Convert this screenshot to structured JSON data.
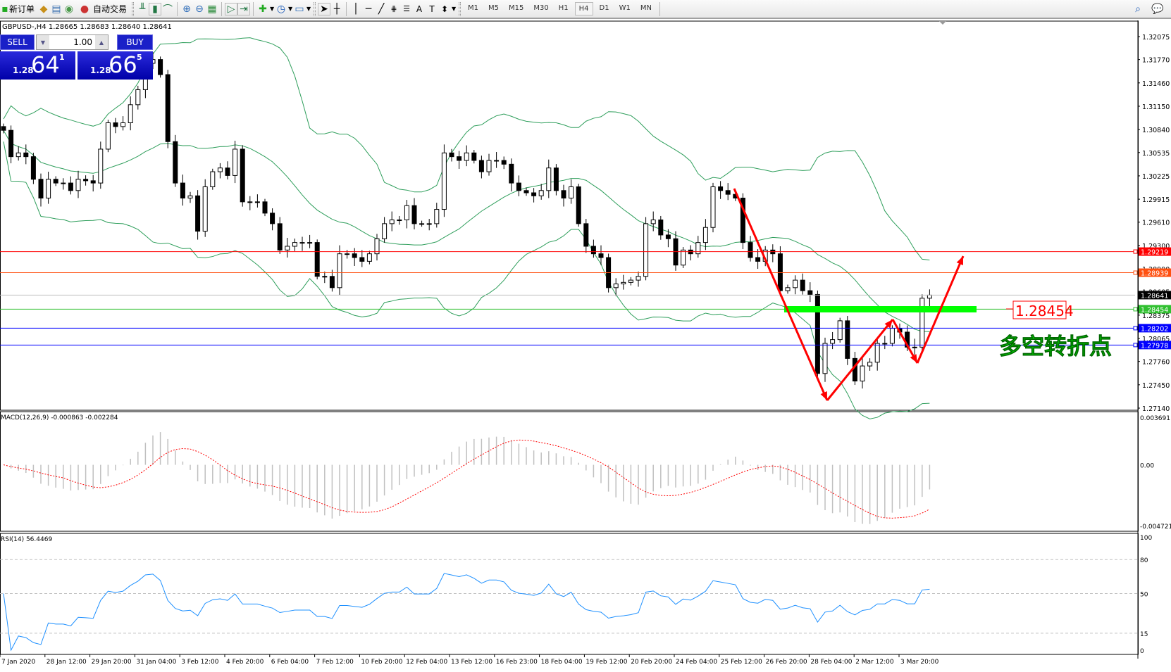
{
  "toolbar": {
    "new_order": "新订单",
    "auto_trading": "自动交易",
    "timeframes": [
      "M1",
      "M5",
      "M15",
      "M30",
      "H1",
      "H4",
      "D1",
      "W1",
      "MN"
    ],
    "active_timeframe": "H4"
  },
  "chart_header": {
    "symbol_line": "GBPUSD-,H4  1.28665 1.28683 1.28640 1.28641"
  },
  "trade_panel": {
    "sell_label": "SELL",
    "buy_label": "BUY",
    "lot": "1.00",
    "sell_prefix": "1.28",
    "sell_big": "64",
    "sell_sup": "1",
    "buy_prefix": "1.28",
    "buy_big": "66",
    "buy_sup": "5"
  },
  "annotation": {
    "level_label": "1.28454",
    "text": "多空转折点",
    "text_color": "#00e000",
    "arrow_color": "#ff0000",
    "band_color": "#00ff00"
  },
  "chart_data": {
    "type": "candlestick",
    "symbol": "GBPUSD-",
    "timeframe": "H4",
    "price_axis": [
      "1.32075",
      "1.31770",
      "1.31460",
      "1.31150",
      "1.30840",
      "1.30535",
      "1.30225",
      "1.29915",
      "1.29610",
      "1.29300",
      "1.28990",
      "1.28685",
      "1.28375",
      "1.28065",
      "1.27760",
      "1.27450",
      "1.27140"
    ],
    "ylim": [
      1.2714,
      1.32075
    ],
    "x_labels": [
      "7 Jan 2020",
      "28 Jan 12:00",
      "29 Jan 20:00",
      "31 Jan 04:00",
      "3 Feb 12:00",
      "4 Feb 20:00",
      "6 Feb 04:00",
      "7 Feb 12:00",
      "10 Feb 20:00",
      "12 Feb 04:00",
      "13 Feb 12:00",
      "16 Feb 23:00",
      "18 Feb 04:00",
      "19 Feb 12:00",
      "20 Feb 20:00",
      "24 Feb 04:00",
      "25 Feb 12:00",
      "26 Feb 20:00",
      "28 Feb 04:00",
      "2 Mar 12:00",
      "3 Mar 20:00"
    ],
    "closes": [
      1.3083,
      1.3048,
      1.3053,
      1.3048,
      1.3018,
      1.2993,
      1.3018,
      1.3013,
      1.3013,
      1.3003,
      1.3018,
      1.3016,
      1.3013,
      1.3058,
      1.3093,
      1.3088,
      1.3093,
      1.3117,
      1.3137,
      1.3172,
      1.3177,
      1.3157,
      1.3068,
      1.3013,
      1.2993,
      1.2996,
      1.2949,
      1.3008,
      1.3028,
      1.3033,
      1.3023,
      1.3058,
      1.2988,
      1.2988,
      1.2988,
      1.2973,
      1.2959,
      1.2924,
      1.2929,
      1.2934,
      1.2934,
      1.2934,
      1.2889,
      1.2889,
      1.2874,
      1.2919,
      1.2919,
      1.2914,
      1.2909,
      1.2919,
      1.2939,
      1.2959,
      1.2964,
      1.2964,
      1.2983,
      1.2959,
      1.2959,
      1.2959,
      1.2978,
      1.3053,
      1.3048,
      1.3043,
      1.3053,
      1.3043,
      1.3028,
      1.3043,
      1.3043,
      1.3038,
      1.3013,
      1.3003,
      1.3,
      1.2996,
      1.3003,
      1.3033,
      1.3003,
      1.2993,
      1.3008,
      1.2959,
      1.2929,
      1.2919,
      1.2914,
      1.2874,
      1.2879,
      1.2881,
      1.2884,
      1.2889,
      1.2959,
      1.2964,
      1.2944,
      1.2939,
      1.2904,
      1.2924,
      1.2919,
      1.2934,
      1.2954,
      1.3008,
      1.3003,
      1.2998,
      1.2993,
      1.2934,
      1.2914,
      1.2909,
      1.2924,
      1.2919,
      1.287,
      1.2874,
      1.2884,
      1.287,
      1.2865,
      1.276,
      1.28,
      1.2805,
      1.283,
      1.278,
      1.275,
      1.277,
      1.2775,
      1.28,
      1.28,
      1.282,
      1.2815,
      1.2795,
      1.2795,
      1.286,
      1.28641
    ],
    "indicators": [
      "Bollinger Bands",
      "MACD(12,26,9)",
      "RSI(14)"
    ],
    "horizontal_lines": [
      {
        "price": "1.29219",
        "color": "#ff0000"
      },
      {
        "price": "1.28939",
        "color": "#ff5010"
      },
      {
        "price": "1.28641",
        "color": "#000000",
        "line_color": "#c0c0c0"
      },
      {
        "price": "1.28454",
        "color": "#30c030"
      },
      {
        "price": "1.28202",
        "color": "#0000ff"
      },
      {
        "price": "1.27978",
        "color": "#0000ff"
      }
    ],
    "macd": {
      "label": "MACD(12,26,9) -0.000863 -0.002284",
      "axis": [
        "0.003691",
        "0.00",
        "-0.004721"
      ],
      "ylim": [
        -0.004721,
        0.003691
      ]
    },
    "rsi": {
      "label": "RSI(14) 56.4469",
      "axis": [
        "100",
        "80",
        "50",
        "15",
        "0"
      ],
      "levels": [
        80,
        50,
        15
      ]
    }
  }
}
